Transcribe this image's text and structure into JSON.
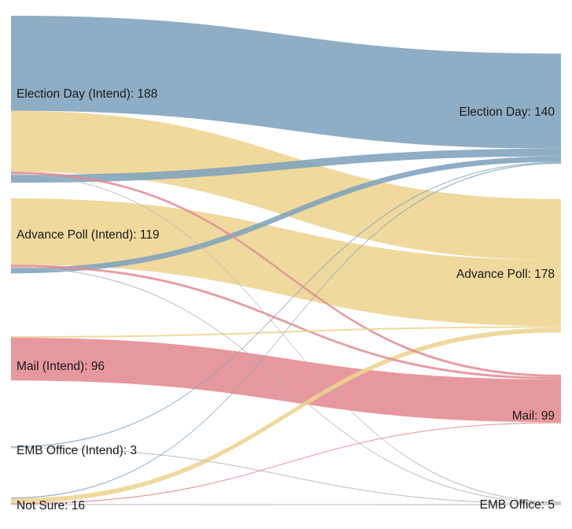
{
  "chart_data": {
    "type": "sankey",
    "title": "",
    "source_nodes": [
      {
        "id": "ed_i",
        "label": "Election Day (Intend): 188",
        "value": 188,
        "color": "#7fa3bd"
      },
      {
        "id": "ap_i",
        "label": "Advance Poll (Intend): 119",
        "value": 119,
        "color": "#edd48f"
      },
      {
        "id": "ma_i",
        "label": "Mail (Intend): 96",
        "value": 96,
        "color": "#e48a91"
      },
      {
        "id": "emb_i",
        "label": "EMB Office (Intend): 3",
        "value": 3,
        "color": "#b9b9b9"
      },
      {
        "id": "ns_i",
        "label": "Not Sure: 16",
        "value": 16,
        "color": "#edd48f"
      }
    ],
    "target_nodes": [
      {
        "id": "ed_a",
        "label": "Election Day: 140",
        "value": 140
      },
      {
        "id": "ap_a",
        "label": "Advance Poll: 178",
        "value": 178
      },
      {
        "id": "ma_a",
        "label": "Mail: 99",
        "value": 99
      },
      {
        "id": "emb_a",
        "label": "EMB Office: 5",
        "value": 5
      }
    ],
    "links": [
      {
        "source": "ed_i",
        "target": "ed_a",
        "value": 122,
        "color": "#7fa3bd"
      },
      {
        "source": "ed_i",
        "target": "ap_a",
        "value": 78,
        "color": "#edd48f"
      },
      {
        "source": "ed_i",
        "target": "ma_a",
        "value": 3,
        "color": "#e48a91"
      },
      {
        "source": "ed_i",
        "target": "emb_a",
        "value": 1,
        "color": "#b9b9b9"
      },
      {
        "source": "ed_i",
        "target": "ed_a",
        "value": 10,
        "color": "#7fa3bd"
      },
      {
        "source": "ap_i",
        "target": "ap_a",
        "value": 85,
        "color": "#edd48f"
      },
      {
        "source": "ap_i",
        "target": "ma_a",
        "value": 3,
        "color": "#e48a91"
      },
      {
        "source": "ap_i",
        "target": "emb_a",
        "value": 1,
        "color": "#b9b9b9"
      },
      {
        "source": "ap_i",
        "target": "ed_a",
        "value": 7,
        "color": "#7fa3bd"
      },
      {
        "source": "ma_i",
        "target": "ap_a",
        "value": 2,
        "color": "#edd48f"
      },
      {
        "source": "ma_i",
        "target": "ma_a",
        "value": 55,
        "color": "#e48a91"
      },
      {
        "source": "emb_i",
        "target": "ed_a",
        "value": 1,
        "color": "#7fa3bd"
      },
      {
        "source": "emb_i",
        "target": "emb_a",
        "value": 1,
        "color": "#b9b9b9"
      },
      {
        "source": "ns_i",
        "target": "ed_a",
        "value": 1,
        "color": "#7fa3bd"
      },
      {
        "source": "ns_i",
        "target": "ap_a",
        "value": 6,
        "color": "#edd48f"
      },
      {
        "source": "ns_i",
        "target": "ma_a",
        "value": 1,
        "color": "#e48a91"
      },
      {
        "source": "ns_i",
        "target": "emb_a",
        "value": 1,
        "color": "#b9b9b9"
      }
    ]
  }
}
